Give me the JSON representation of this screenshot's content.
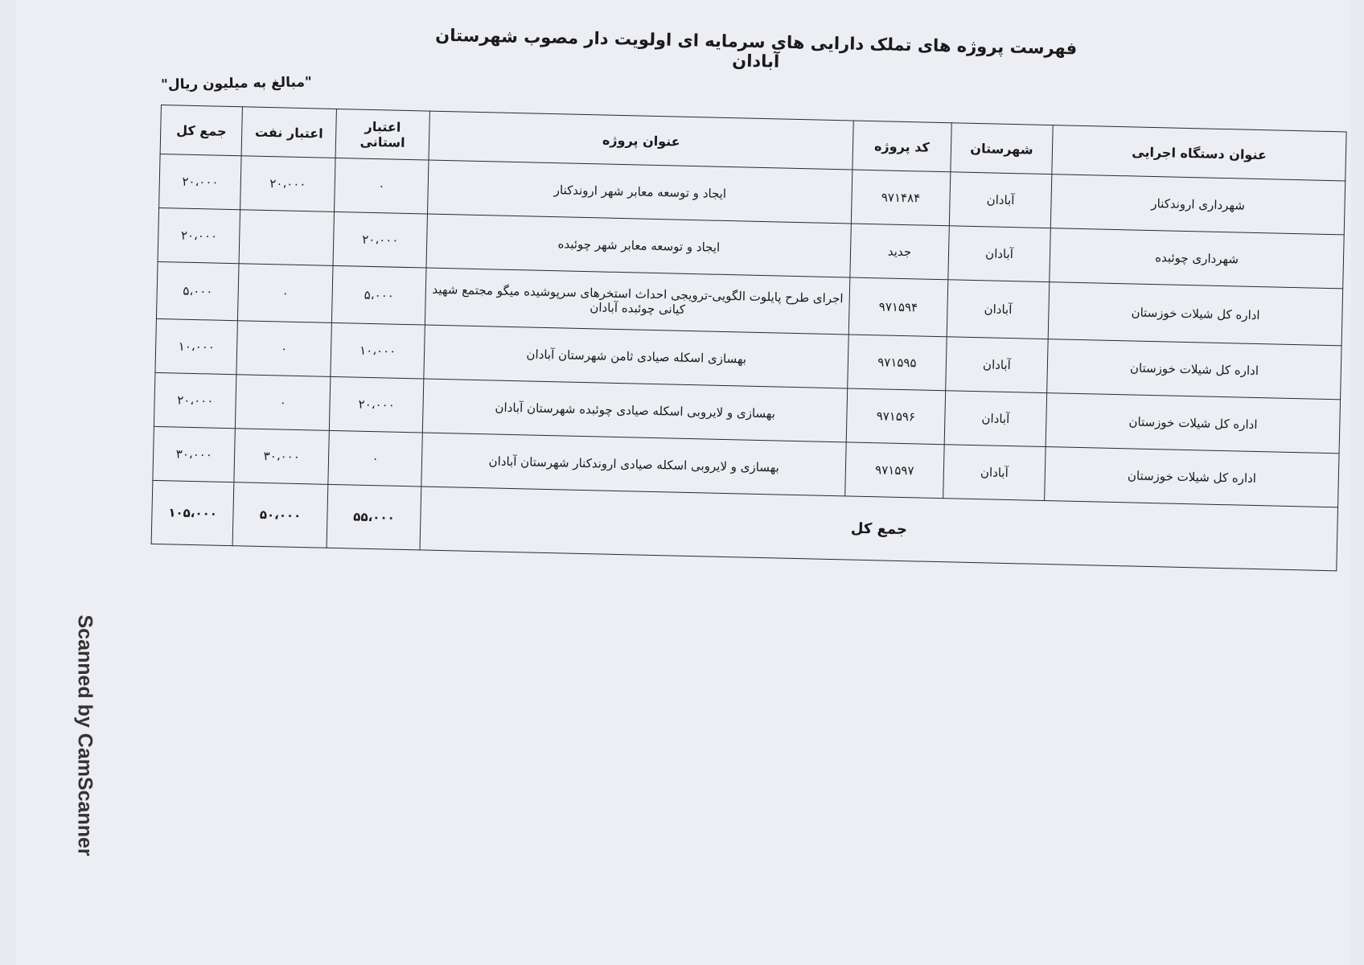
{
  "title": "فهرست پروژه های تملک دارایی های سرمایه ای اولویت دار مصوب شهرستان آبادان",
  "unit_note": "\"مبالغ به میلیون ریال\"",
  "table": {
    "headers": [
      "عنوان دستگاه اجرایی",
      "شهرستان",
      "کد پروژه",
      "عنوان پروژه",
      "اعتبار استانی",
      "اعتبار نفت",
      "جمع کل"
    ],
    "rows": [
      {
        "agency": "شهرداری اروندکنار",
        "city": "آبادان",
        "code": "۹۷۱۴۸۴",
        "project": "ایجاد و توسعه معابر شهر اروندکنار",
        "provincial": "۰",
        "oil": "۲۰،۰۰۰",
        "total": "۲۰،۰۰۰"
      },
      {
        "agency": "شهرداری چوئبده",
        "city": "آبادان",
        "code": "جدید",
        "project": "ایجاد و توسعه معابر شهر چوئبده",
        "provincial": "۲۰،۰۰۰",
        "oil": "",
        "total": "۲۰،۰۰۰"
      },
      {
        "agency": "اداره کل شیلات خوزستان",
        "city": "آبادان",
        "code": "۹۷۱۵۹۴",
        "project": "اجرای طرح پایلوت الگویی-ترویجی احداث استخرهای سرپوشیده میگو مجتمع شهید کیانی چوئبده آبادان",
        "provincial": "۵،۰۰۰",
        "oil": "۰",
        "total": "۵،۰۰۰"
      },
      {
        "agency": "اداره کل شیلات خوزستان",
        "city": "آبادان",
        "code": "۹۷۱۵۹۵",
        "project": "بهسازی اسکله صیادی ثامن شهرستان آبادان",
        "provincial": "۱۰،۰۰۰",
        "oil": "۰",
        "total": "۱۰،۰۰۰"
      },
      {
        "agency": "اداره کل شیلات خوزستان",
        "city": "آبادان",
        "code": "۹۷۱۵۹۶",
        "project": "بهسازی و لایروبی اسکله صیادی چوئبده شهرستان آبادان",
        "provincial": "۲۰،۰۰۰",
        "oil": "۰",
        "total": "۲۰،۰۰۰"
      },
      {
        "agency": "اداره کل شیلات خوزستان",
        "city": "آبادان",
        "code": "۹۷۱۵۹۷",
        "project": "بهسازی و لایروبی اسکله صیادی اروندکنار شهرستان آبادان",
        "provincial": "۰",
        "oil": "۳۰،۰۰۰",
        "total": "۳۰،۰۰۰"
      }
    ],
    "total_row": {
      "label": "جمع کل",
      "provincial": "۵۵،۰۰۰",
      "oil": "۵۰،۰۰۰",
      "total": "۱۰۵،۰۰۰"
    }
  },
  "watermark": "Scanned by CamScanner"
}
